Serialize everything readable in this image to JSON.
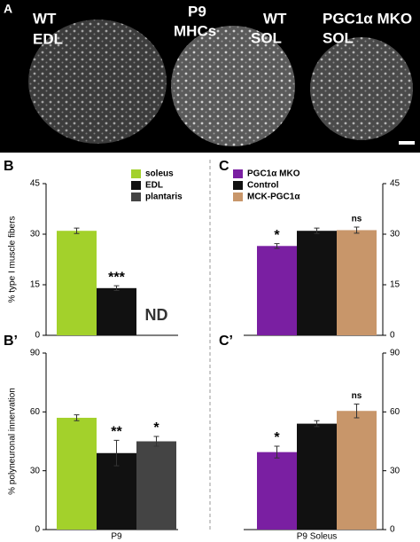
{
  "panel_a": {
    "label": "A",
    "texts": [
      [
        "WT",
        "EDL"
      ],
      [
        "P9",
        "MHCs"
      ],
      [
        "WT",
        "SOL"
      ],
      [
        "PGC1α MKO",
        "SOL"
      ]
    ]
  },
  "chart_data": [
    {
      "type": "bar",
      "label": "B",
      "y_label": "% type I muscle fibers",
      "categories": [
        "soleus",
        "EDL",
        "plantaris"
      ],
      "colors": [
        "#a3d12b",
        "#111111",
        "#444444"
      ],
      "values": [
        31,
        14,
        null
      ],
      "errors": [
        0.8,
        0.7,
        null
      ],
      "annotations": [
        null,
        "***",
        "ND"
      ],
      "ylim": [
        0,
        45
      ],
      "yticks": [
        0,
        15,
        30,
        45
      ],
      "axis_side": "left",
      "legend": "top-right"
    },
    {
      "type": "bar",
      "label": "B’",
      "y_label": "% polyneuronal innervation",
      "x_label": "P9",
      "categories": [
        "soleus",
        "EDL",
        "plantaris"
      ],
      "colors": [
        "#a3d12b",
        "#111111",
        "#444444"
      ],
      "values": [
        57,
        39,
        45
      ],
      "errors": [
        1.5,
        6.5,
        2.5
      ],
      "annotations": [
        null,
        "**",
        "*"
      ],
      "ylim": [
        0,
        90
      ],
      "yticks": [
        0,
        30,
        60,
        90
      ],
      "axis_side": "left"
    },
    {
      "type": "bar",
      "label": "C",
      "categories": [
        "PGC1α MKO",
        "Control",
        "MCK-PGC1α"
      ],
      "colors": [
        "#7a1fa2",
        "#111111",
        "#c8966a"
      ],
      "values": [
        26.5,
        31,
        31.2
      ],
      "errors": [
        0.7,
        0.8,
        0.9
      ],
      "annotations": [
        "*",
        null,
        "ns"
      ],
      "ylim": [
        0,
        45
      ],
      "yticks": [
        0,
        15,
        30,
        45
      ],
      "axis_side": "right",
      "legend": "top-left"
    },
    {
      "type": "bar",
      "label": "C’",
      "x_label": "P9 Soleus",
      "categories": [
        "PGC1α MKO",
        "Control",
        "MCK-PGC1α"
      ],
      "colors": [
        "#7a1fa2",
        "#111111",
        "#c8966a"
      ],
      "values": [
        39.5,
        54,
        60.5
      ],
      "errors": [
        3,
        1.5,
        3.5
      ],
      "annotations": [
        "*",
        null,
        "ns"
      ],
      "ylim": [
        0,
        90
      ],
      "yticks": [
        0,
        30,
        60,
        90
      ],
      "axis_side": "right"
    }
  ]
}
